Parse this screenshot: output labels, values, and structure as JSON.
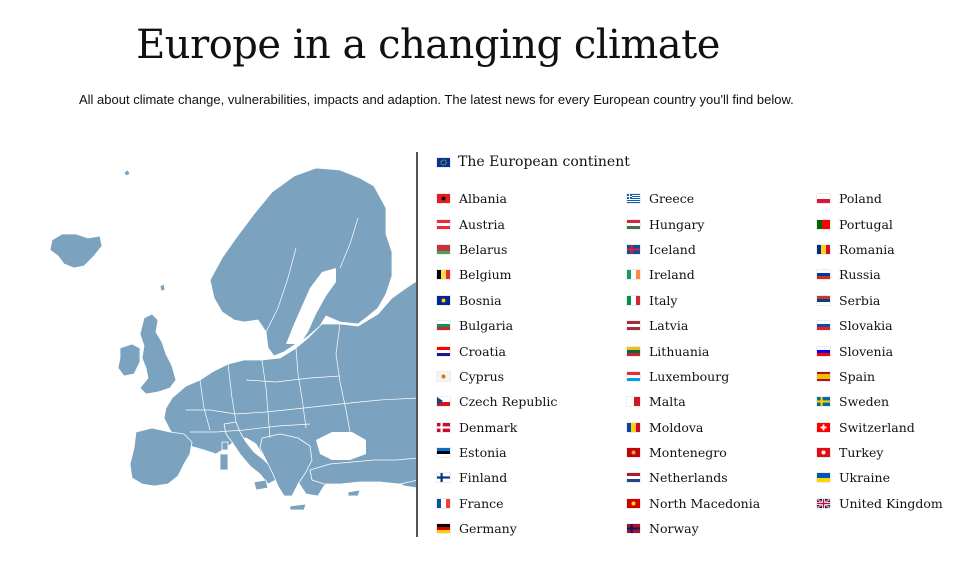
{
  "page": {
    "title": "Europe in a changing climate",
    "subtitle": "All about climate change, vulnerabilities, impacts and adaption. The latest news for every European country you'll find below."
  },
  "continent": {
    "label": "The European continent",
    "flag": "eu-flag",
    "flag_colors": [
      "#003399",
      "#ffcc00"
    ]
  },
  "columns": [
    [
      {
        "label": "Albania",
        "flag": {
          "type": "solid",
          "colors": [
            "#e41e20"
          ],
          "mark": "#111111"
        }
      },
      {
        "label": "Austria",
        "flag": {
          "type": "h",
          "colors": [
            "#ed2939",
            "#ffffff",
            "#ed2939"
          ]
        }
      },
      {
        "label": "Belarus",
        "flag": {
          "type": "h",
          "colors": [
            "#c8313e",
            "#c8313e",
            "#4aa657"
          ]
        }
      },
      {
        "label": "Belgium",
        "flag": {
          "type": "v",
          "colors": [
            "#000000",
            "#fae042",
            "#ed2939"
          ]
        }
      },
      {
        "label": "Bosnia",
        "flag": {
          "type": "solid",
          "colors": [
            "#002395"
          ],
          "mark": "#fecb00"
        }
      },
      {
        "label": "Bulgaria",
        "flag": {
          "type": "h",
          "colors": [
            "#ffffff",
            "#00966e",
            "#d62612"
          ]
        }
      },
      {
        "label": "Croatia",
        "flag": {
          "type": "h",
          "colors": [
            "#ff0000",
            "#ffffff",
            "#171796"
          ]
        }
      },
      {
        "label": "Cyprus",
        "flag": {
          "type": "solid",
          "colors": [
            "#f4f4f4"
          ],
          "mark": "#d57800"
        }
      },
      {
        "label": "Czech Republic",
        "flag": {
          "type": "h",
          "colors": [
            "#ffffff",
            "#d7141a"
          ],
          "mark": "#11457e"
        }
      },
      {
        "label": "Denmark",
        "flag": {
          "type": "cross",
          "colors": [
            "#c8102e",
            "#ffffff"
          ]
        }
      },
      {
        "label": "Estonia",
        "flag": {
          "type": "h",
          "colors": [
            "#0072ce",
            "#000000",
            "#ffffff"
          ]
        }
      },
      {
        "label": "Finland",
        "flag": {
          "type": "cross",
          "colors": [
            "#ffffff",
            "#003580"
          ]
        }
      },
      {
        "label": "France",
        "flag": {
          "type": "v",
          "colors": [
            "#0055a4",
            "#ffffff",
            "#ef4135"
          ]
        }
      },
      {
        "label": "Germany",
        "flag": {
          "type": "h",
          "colors": [
            "#000000",
            "#dd0000",
            "#ffce00"
          ]
        }
      }
    ],
    [
      {
        "label": "Greece",
        "flag": {
          "type": "stripes",
          "colors": [
            "#0d5eaf",
            "#ffffff"
          ]
        }
      },
      {
        "label": "Hungary",
        "flag": {
          "type": "h",
          "colors": [
            "#cd2a3e",
            "#ffffff",
            "#436f4d"
          ]
        }
      },
      {
        "label": "Iceland",
        "flag": {
          "type": "cross",
          "colors": [
            "#02529c",
            "#dc1e35"
          ]
        }
      },
      {
        "label": "Ireland",
        "flag": {
          "type": "v",
          "colors": [
            "#169b62",
            "#ffffff",
            "#ff883e"
          ]
        }
      },
      {
        "label": "Italy",
        "flag": {
          "type": "v",
          "colors": [
            "#009246",
            "#ffffff",
            "#ce2b37"
          ]
        }
      },
      {
        "label": "Latvia",
        "flag": {
          "type": "h",
          "colors": [
            "#9e3039",
            "#ffffff",
            "#9e3039"
          ]
        }
      },
      {
        "label": "Lithuania",
        "flag": {
          "type": "h",
          "colors": [
            "#fdb913",
            "#006a44",
            "#c1272d"
          ]
        }
      },
      {
        "label": "Luxembourg",
        "flag": {
          "type": "h",
          "colors": [
            "#ed2939",
            "#ffffff",
            "#00a1de"
          ]
        }
      },
      {
        "label": "Malta",
        "flag": {
          "type": "v",
          "colors": [
            "#ffffff",
            "#cf142b"
          ]
        }
      },
      {
        "label": "Moldova",
        "flag": {
          "type": "v",
          "colors": [
            "#0046ae",
            "#ffd200",
            "#cc092f"
          ]
        }
      },
      {
        "label": "Montenegro",
        "flag": {
          "type": "solid",
          "colors": [
            "#c40308"
          ],
          "mark": "#d4af37"
        }
      },
      {
        "label": "Netherlands",
        "flag": {
          "type": "h",
          "colors": [
            "#ae1c28",
            "#ffffff",
            "#21468b"
          ]
        }
      },
      {
        "label": "North Macedonia",
        "flag": {
          "type": "solid",
          "colors": [
            "#d20000"
          ],
          "mark": "#ffe600"
        }
      },
      {
        "label": "Norway",
        "flag": {
          "type": "cross",
          "colors": [
            "#ba0c2f",
            "#00205b"
          ]
        }
      }
    ],
    [
      {
        "label": "Poland",
        "flag": {
          "type": "h",
          "colors": [
            "#ffffff",
            "#dc143c"
          ]
        }
      },
      {
        "label": "Portugal",
        "flag": {
          "type": "v2",
          "colors": [
            "#006600",
            "#ff0000"
          ]
        }
      },
      {
        "label": "Romania",
        "flag": {
          "type": "v",
          "colors": [
            "#002b7f",
            "#fcd116",
            "#ce1126"
          ]
        }
      },
      {
        "label": "Russia",
        "flag": {
          "type": "h",
          "colors": [
            "#ffffff",
            "#0039a6",
            "#d52b1e"
          ]
        }
      },
      {
        "label": "Serbia",
        "flag": {
          "type": "h",
          "colors": [
            "#c6363c",
            "#0c4076",
            "#ffffff"
          ]
        }
      },
      {
        "label": "Slovakia",
        "flag": {
          "type": "h",
          "colors": [
            "#ffffff",
            "#0b4ea2",
            "#ee1c25"
          ]
        }
      },
      {
        "label": "Slovenia",
        "flag": {
          "type": "h",
          "colors": [
            "#ffffff",
            "#0000ff",
            "#ff0000"
          ]
        }
      },
      {
        "label": "Spain",
        "flag": {
          "type": "h",
          "colors": [
            "#aa151b",
            "#f1bf00",
            "#f1bf00",
            "#aa151b"
          ]
        }
      },
      {
        "label": "Sweden",
        "flag": {
          "type": "cross",
          "colors": [
            "#006aa7",
            "#fecc00"
          ]
        }
      },
      {
        "label": "Switzerland",
        "flag": {
          "type": "swiss",
          "colors": [
            "#ff0000",
            "#ffffff"
          ]
        }
      },
      {
        "label": "Turkey",
        "flag": {
          "type": "solid",
          "colors": [
            "#e30a17"
          ],
          "mark": "#ffffff"
        }
      },
      {
        "label": "Ukraine",
        "flag": {
          "type": "h",
          "colors": [
            "#0057b7",
            "#ffd700"
          ]
        }
      },
      {
        "label": "United Kingdom",
        "flag": {
          "type": "uk",
          "colors": [
            "#012169",
            "#ffffff",
            "#c8102e"
          ]
        }
      }
    ]
  ],
  "map": {
    "fill": "#7ba3bf",
    "border": "#ffffff"
  }
}
